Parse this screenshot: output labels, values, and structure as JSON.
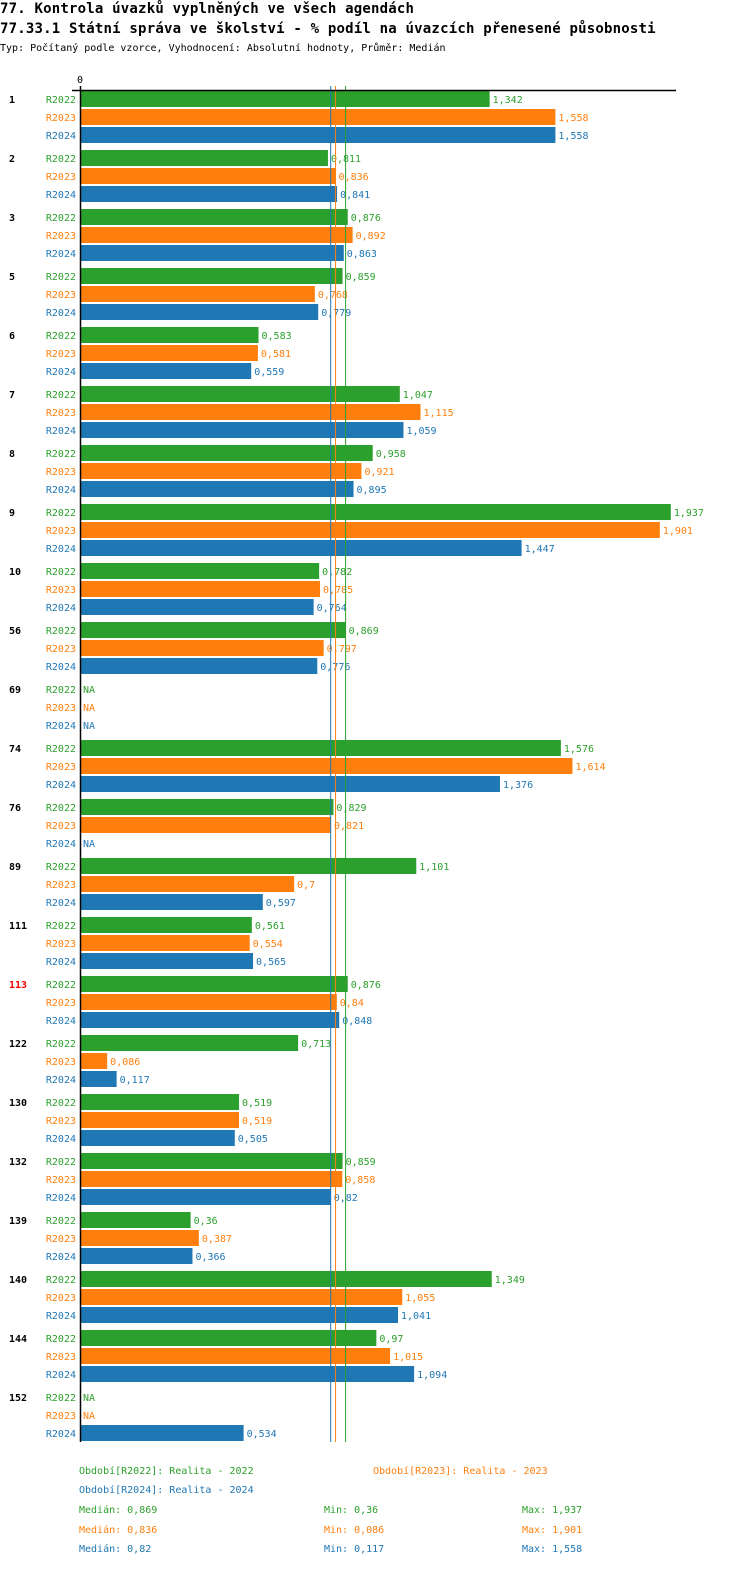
{
  "header": {
    "title1": "77. Kontrola úvazků vyplněných ve všech agendách",
    "title2": "77.33.1 Státní správa ve školství - % podíl na úvazcích přenesené působnosti",
    "subtitle": "Typ: Počítaný podle vzorce, Vyhodnocení: Absolutní hodnoty, Průměr: Medián"
  },
  "colors": {
    "R2022": "#2ca02c",
    "R2023": "#ff7f0e",
    "R2024": "#1f77b4",
    "highlight": "#ff0000"
  },
  "chart_data": {
    "type": "bar",
    "orientation": "horizontal",
    "axis_zero_label": "0",
    "series_names": [
      "R2022",
      "R2023",
      "R2024"
    ],
    "na_label": "NA",
    "groups": [
      {
        "id": "1",
        "values": [
          1.342,
          1.558,
          1.558
        ]
      },
      {
        "id": "2",
        "values": [
          0.811,
          0.836,
          0.841
        ]
      },
      {
        "id": "3",
        "values": [
          0.876,
          0.892,
          0.863
        ]
      },
      {
        "id": "5",
        "values": [
          0.859,
          0.768,
          0.779
        ]
      },
      {
        "id": "6",
        "values": [
          0.583,
          0.581,
          0.559
        ]
      },
      {
        "id": "7",
        "values": [
          1.047,
          1.115,
          1.059
        ]
      },
      {
        "id": "8",
        "values": [
          0.958,
          0.921,
          0.895
        ]
      },
      {
        "id": "9",
        "values": [
          1.937,
          1.901,
          1.447
        ]
      },
      {
        "id": "10",
        "values": [
          0.782,
          0.785,
          0.764
        ]
      },
      {
        "id": "56",
        "values": [
          0.869,
          0.797,
          0.776
        ]
      },
      {
        "id": "69",
        "values": [
          null,
          null,
          null
        ]
      },
      {
        "id": "74",
        "values": [
          1.576,
          1.614,
          1.376
        ]
      },
      {
        "id": "76",
        "values": [
          0.829,
          0.821,
          null
        ]
      },
      {
        "id": "89",
        "values": [
          1.101,
          0.7,
          0.597
        ]
      },
      {
        "id": "111",
        "values": [
          0.561,
          0.554,
          0.565
        ]
      },
      {
        "id": "113",
        "values": [
          0.876,
          0.84,
          0.848
        ],
        "highlight": true
      },
      {
        "id": "122",
        "values": [
          0.713,
          0.086,
          0.117
        ]
      },
      {
        "id": "130",
        "values": [
          0.519,
          0.519,
          0.505
        ]
      },
      {
        "id": "132",
        "values": [
          0.859,
          0.858,
          0.82
        ]
      },
      {
        "id": "139",
        "values": [
          0.36,
          0.387,
          0.366
        ]
      },
      {
        "id": "140",
        "values": [
          1.349,
          1.055,
          1.041
        ]
      },
      {
        "id": "144",
        "values": [
          0.97,
          1.015,
          1.094
        ]
      },
      {
        "id": "152",
        "values": [
          null,
          null,
          0.534
        ]
      }
    ],
    "median_lines": {
      "R2022": 0.869,
      "R2023": 0.836,
      "R2024": 0.82
    },
    "xlim": [
      0,
      1.95
    ]
  },
  "legend": {
    "r2022": "Období[R2022]: Realita - 2022",
    "r2023": "Období[R2023]: Realita - 2023",
    "r2024": "Období[R2024]: Realita - 2024"
  },
  "stats": [
    {
      "median": "Medián: 0,869",
      "min": "Min: 0,36",
      "max": "Max: 1,937"
    },
    {
      "median": "Medián: 0,836",
      "min": "Min: 0,086",
      "max": "Max: 1,901"
    },
    {
      "median": "Medián: 0,82",
      "min": "Min: 0,117",
      "max": "Max: 1,558"
    }
  ]
}
